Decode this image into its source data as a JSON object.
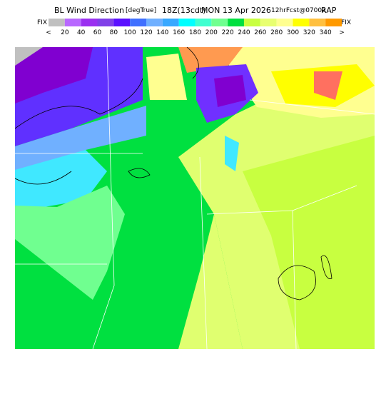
{
  "header": {
    "title": "BL Wind Direction",
    "units": "[degTrue]",
    "time": "18Z(13cdt)",
    "date": "MON 13 Apr 2026",
    "forecast": "12hrFcst@0700z",
    "model": "RAP"
  },
  "colorbar": {
    "left_label": "FIX",
    "right_label": "FIX",
    "labels": [
      "<",
      "20",
      "40",
      "60",
      "80",
      "100",
      "120",
      "140",
      "160",
      "180",
      "200",
      "220",
      "240",
      "260",
      "280",
      "300",
      "320",
      "340",
      ">"
    ],
    "colors": [
      "#c0c0c0",
      "#b868ff",
      "#9a30f0",
      "#8040e8",
      "#5a10ff",
      "#4070ff",
      "#70b0ff",
      "#38a8ff",
      "#00ffff",
      "#40ffd0",
      "#70ff90",
      "#00e040",
      "#c8ff40",
      "#e8ff70",
      "#ffff90",
      "#ffff00",
      "#ffc040",
      "#ff9a00"
    ]
  }
}
